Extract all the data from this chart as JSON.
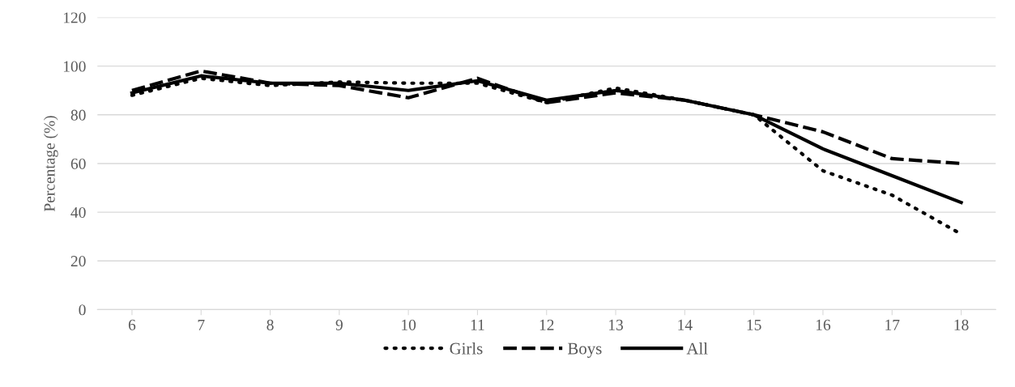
{
  "chart_data": {
    "type": "line",
    "ylabel": "Percentage (%)",
    "categories": [
      "6",
      "7",
      "8",
      "9",
      "10",
      "11",
      "12",
      "13",
      "14",
      "15",
      "16",
      "17",
      "18"
    ],
    "series": [
      {
        "name": "Girls",
        "color": "#000000",
        "line_style": "dotted",
        "values": [
          88,
          95,
          92,
          93.5,
          93,
          93,
          85,
          91,
          86,
          80,
          57,
          47,
          31
        ]
      },
      {
        "name": "Boys",
        "color": "#000000",
        "line_style": "dashed",
        "values": [
          90,
          98,
          93,
          92,
          87,
          95,
          85,
          89,
          86,
          80,
          73,
          62,
          60
        ]
      },
      {
        "name": "All",
        "color": "#000000",
        "line_style": "solid",
        "values": [
          89,
          96,
          93,
          93,
          90,
          94,
          86,
          90,
          86,
          80,
          66,
          55,
          44
        ]
      }
    ],
    "ylim": [
      0,
      120
    ],
    "yticks": [
      0,
      20,
      40,
      60,
      80,
      100,
      120
    ],
    "grid": "y",
    "legend": "bottom",
    "marker": "none"
  }
}
